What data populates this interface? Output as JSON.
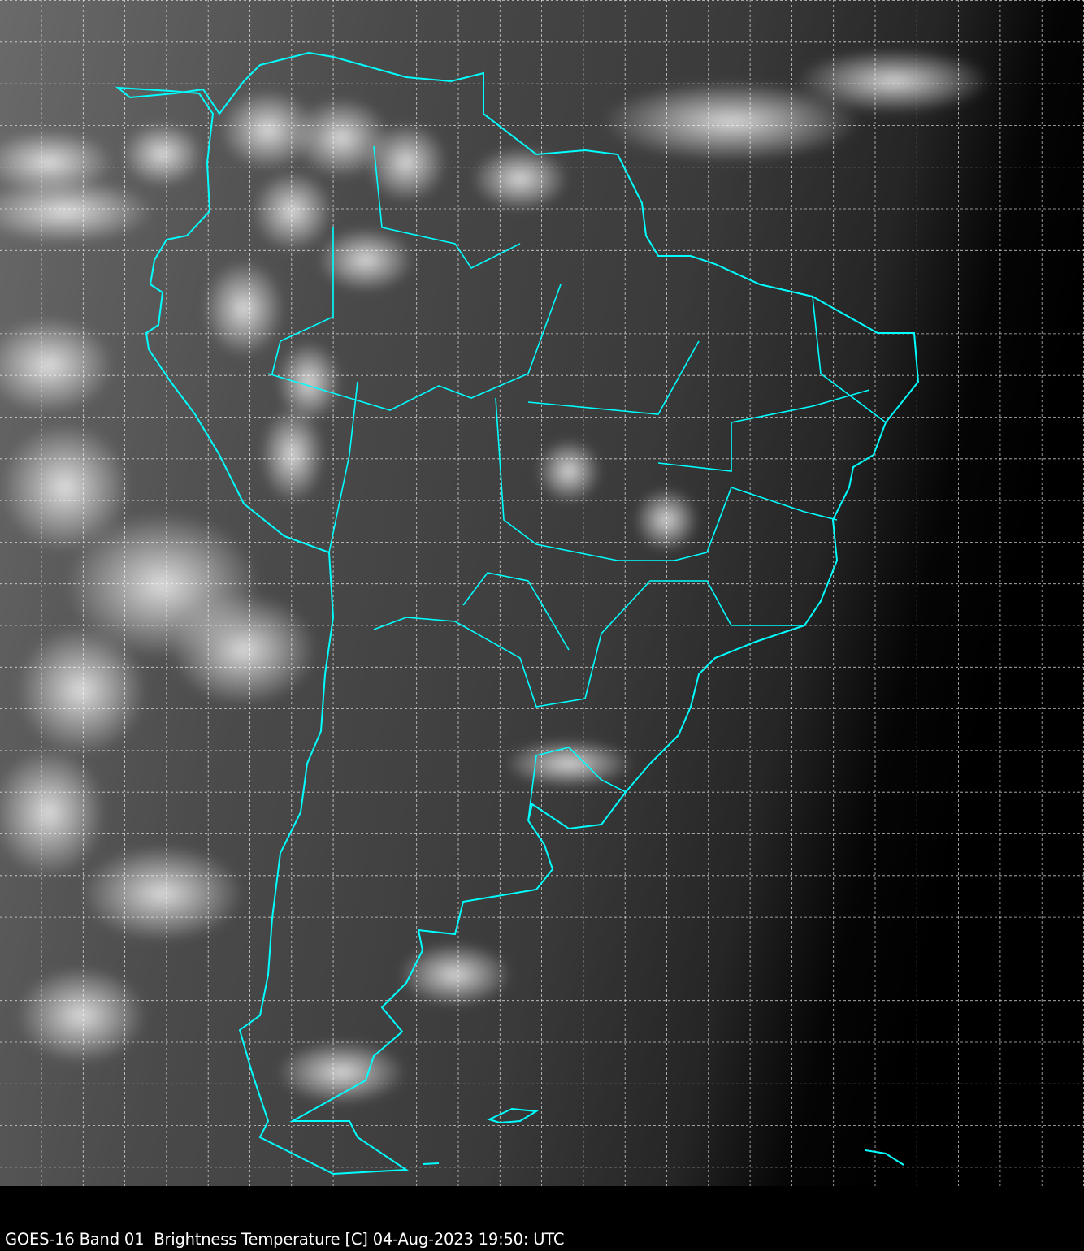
{
  "caption": "GOES-16 Band 01  Brightness Temperature [C] 04-Aug-2023 19:50: UTC",
  "colors": {
    "coastline": "#00ffff",
    "gridline": "#ffffff",
    "background": "#000000"
  }
}
